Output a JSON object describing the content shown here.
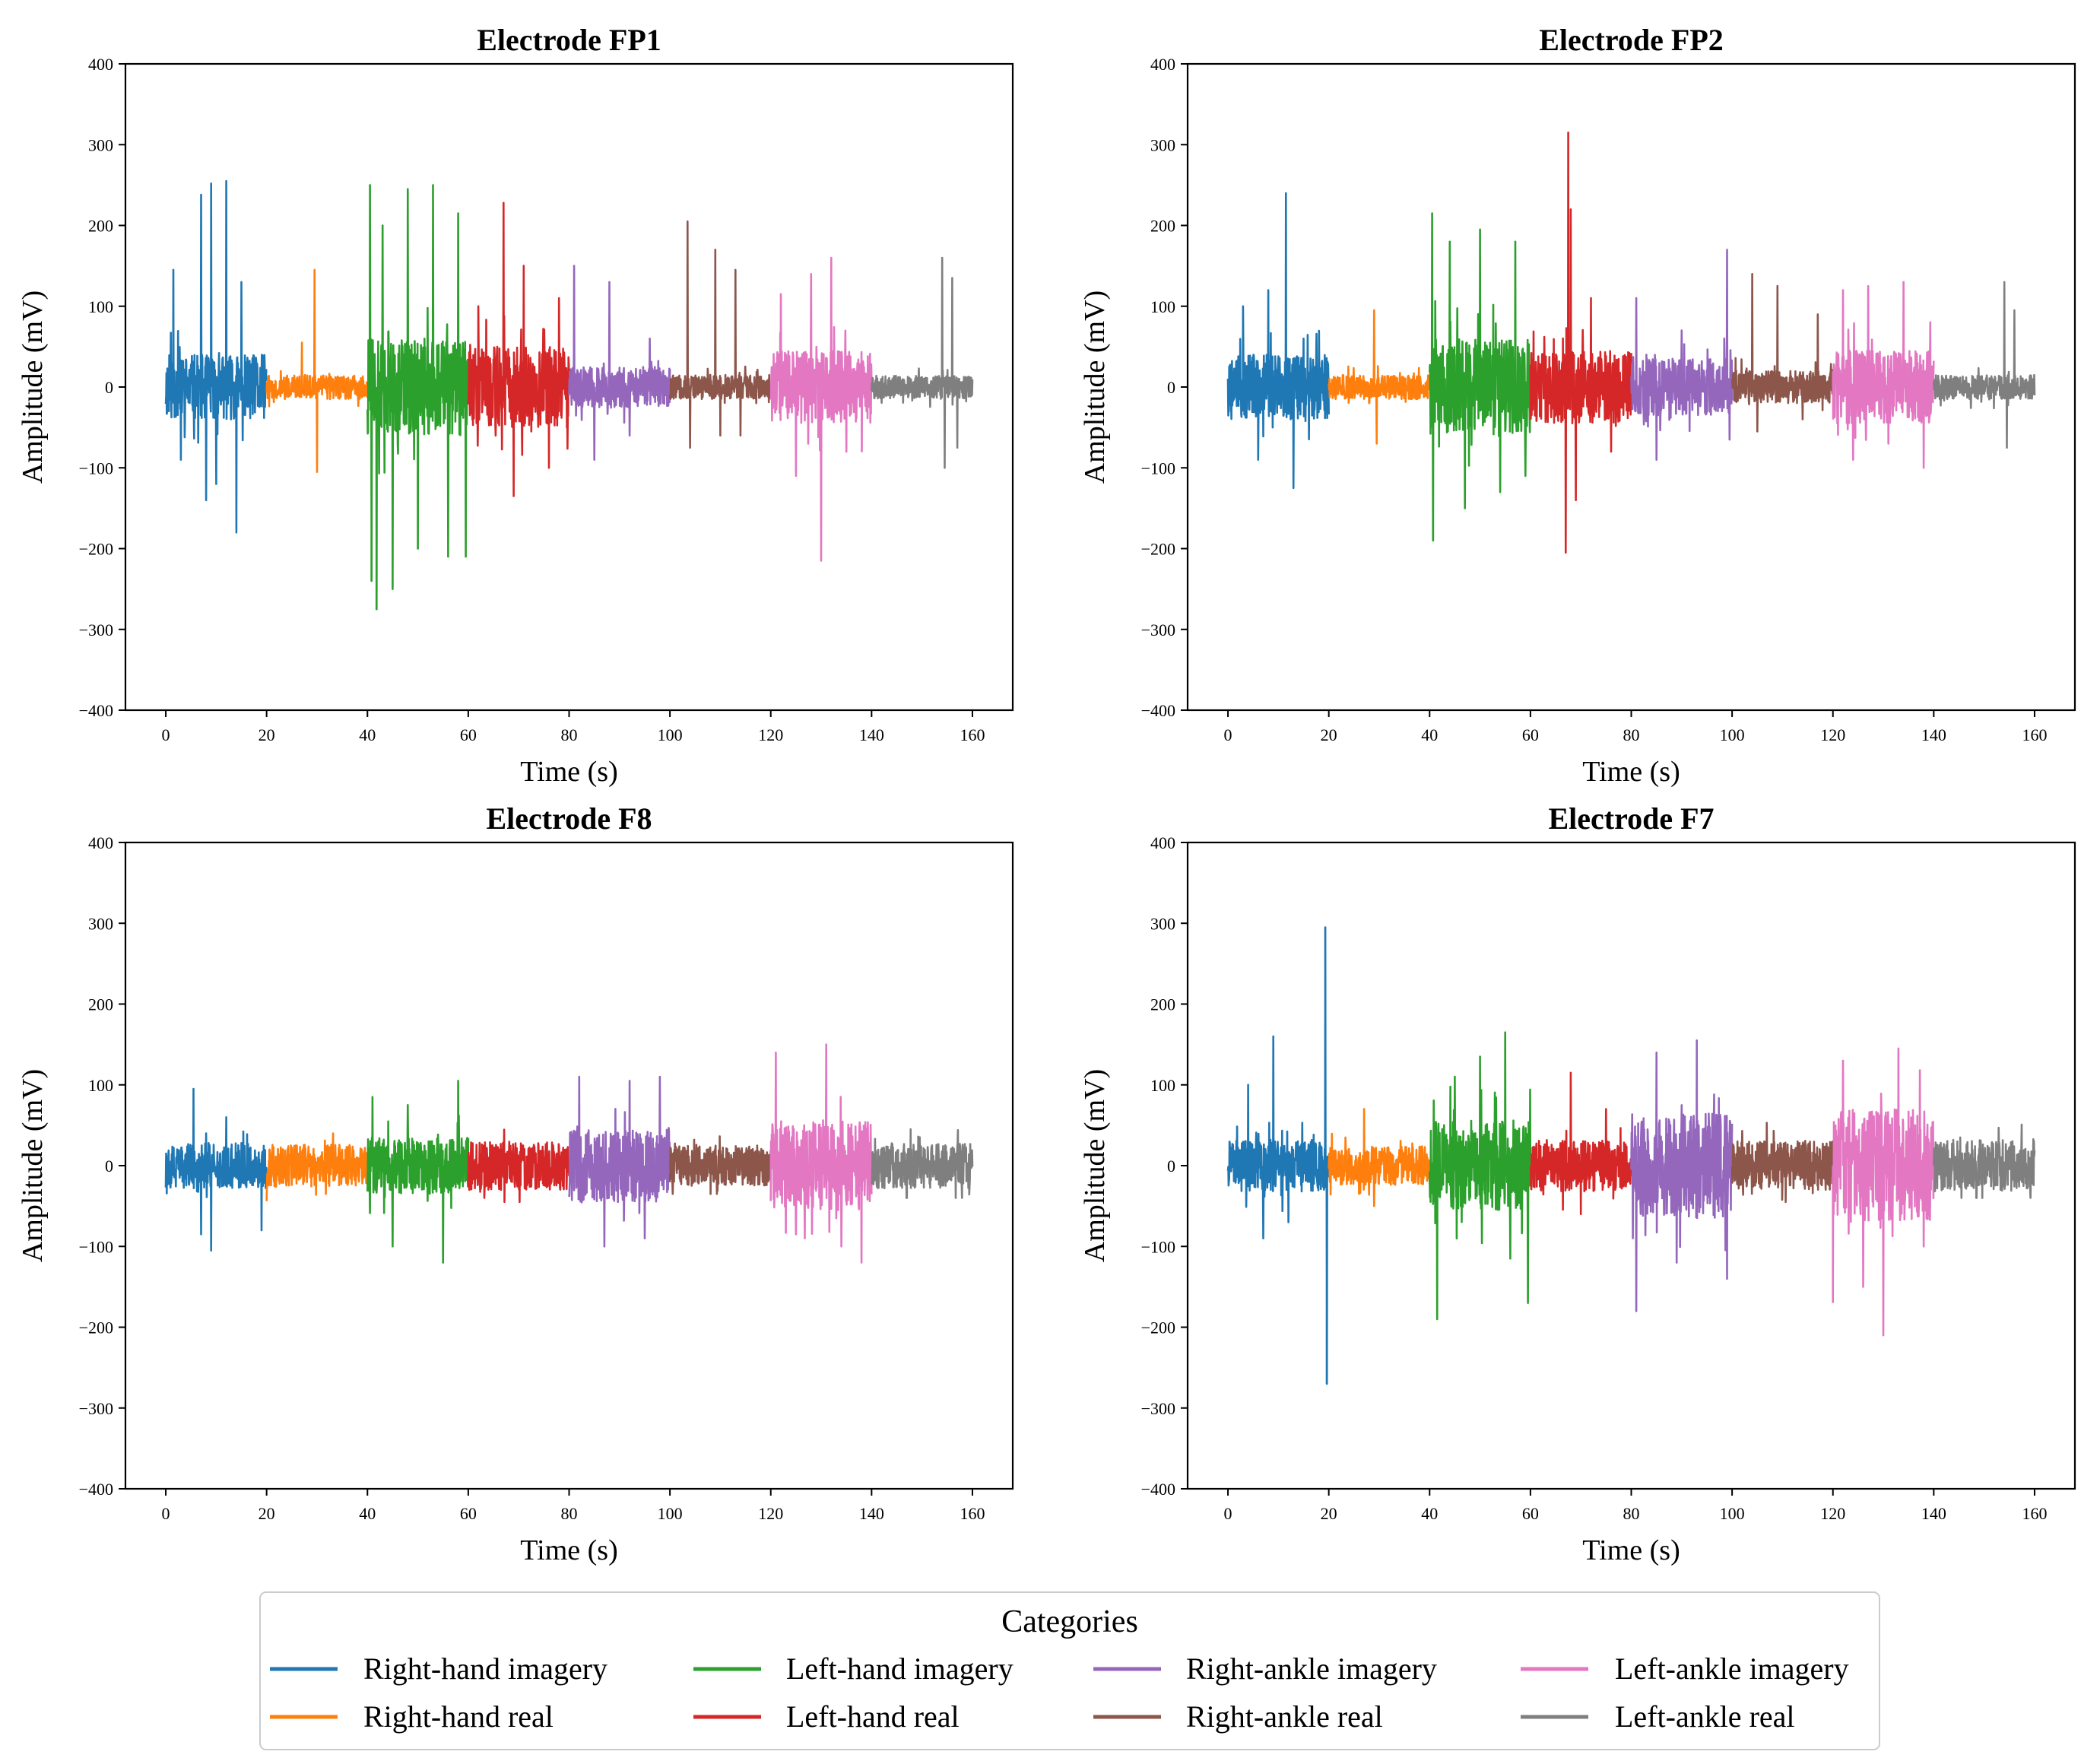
{
  "chart_data": [
    {
      "type": "line",
      "title": "Electrode FP1",
      "xlabel": "Time (s)",
      "ylabel": "Amplitude (mV)",
      "xlim": [
        -8,
        168
      ],
      "ylim": [
        -400,
        400
      ],
      "xticks": [
        0,
        20,
        40,
        60,
        80,
        100,
        120,
        140,
        160
      ],
      "yticks": [
        -400,
        -300,
        -200,
        -100,
        0,
        100,
        200,
        300,
        400
      ],
      "series": [
        {
          "name": "Right-hand imagery",
          "x_range": [
            0,
            20
          ],
          "approx_max": 255,
          "approx_min": -180,
          "noise": 40,
          "spikes": [
            [
              1.5,
              145
            ],
            [
              3,
              -90
            ],
            [
              7,
              238
            ],
            [
              8,
              -140
            ],
            [
              9,
              252
            ],
            [
              10,
              -120
            ],
            [
              12,
              255
            ],
            [
              14,
              -180
            ],
            [
              15,
              130
            ]
          ]
        },
        {
          "name": "Right-hand real",
          "x_range": [
            20,
            40
          ],
          "approx_max": 145,
          "approx_min": -105,
          "noise": 15,
          "spikes": [
            [
              27,
              55
            ],
            [
              29.5,
              145
            ],
            [
              30,
              -105
            ]
          ]
        },
        {
          "name": "Left-hand imagery",
          "x_range": [
            40,
            60
          ],
          "approx_max": 250,
          "approx_min": -275,
          "noise": 60,
          "spikes": [
            [
              40.5,
              250
            ],
            [
              40.8,
              -240
            ],
            [
              41.8,
              -275
            ],
            [
              43,
              200
            ],
            [
              45,
              -250
            ],
            [
              48,
              245
            ],
            [
              50,
              -200
            ],
            [
              53,
              250
            ],
            [
              56,
              -210
            ],
            [
              58,
              215
            ],
            [
              59.5,
              -210
            ]
          ]
        },
        {
          "name": "Left-hand real",
          "x_range": [
            60,
            80
          ],
          "approx_max": 228,
          "approx_min": -135,
          "noise": 50,
          "spikes": [
            [
              62,
              100
            ],
            [
              67,
              228
            ],
            [
              69,
              -135
            ],
            [
              71,
              150
            ],
            [
              76,
              -100
            ],
            [
              78,
              110
            ]
          ]
        },
        {
          "name": "Right-ankle imagery",
          "x_range": [
            80,
            100
          ],
          "approx_max": 150,
          "approx_min": -90,
          "noise": 25,
          "spikes": [
            [
              81,
              150
            ],
            [
              85,
              -90
            ],
            [
              88,
              130
            ],
            [
              92,
              -60
            ],
            [
              96,
              60
            ]
          ]
        },
        {
          "name": "Right-ankle real",
          "x_range": [
            100,
            120
          ],
          "approx_max": 205,
          "approx_min": -75,
          "noise": 15,
          "spikes": [
            [
              103.5,
              205
            ],
            [
              104,
              -75
            ],
            [
              109,
              170
            ],
            [
              110,
              -60
            ],
            [
              113,
              145
            ],
            [
              114,
              -60
            ]
          ]
        },
        {
          "name": "Left-ankle imagery",
          "x_range": [
            120,
            140
          ],
          "approx_max": 165,
          "approx_min": -215,
          "noise": 45,
          "spikes": [
            [
              122,
              115
            ],
            [
              125,
              -110
            ],
            [
              128,
              140
            ],
            [
              130,
              -215
            ],
            [
              132,
              160
            ],
            [
              135,
              -80
            ]
          ]
        },
        {
          "name": "Left-ankle real",
          "x_range": [
            140,
            160
          ],
          "approx_max": 160,
          "approx_min": -100,
          "noise": 14,
          "spikes": [
            [
              154,
              160
            ],
            [
              154.5,
              -100
            ],
            [
              156,
              135
            ],
            [
              157,
              -75
            ]
          ]
        }
      ]
    },
    {
      "type": "line",
      "title": "Electrode FP2",
      "xlabel": "Time (s)",
      "ylabel": "Amplitude (mV)",
      "xlim": [
        -8,
        168
      ],
      "ylim": [
        -400,
        400
      ],
      "xticks": [
        0,
        20,
        40,
        60,
        80,
        100,
        120,
        140,
        160
      ],
      "yticks": [
        -400,
        -300,
        -200,
        -100,
        0,
        100,
        200,
        300,
        400
      ],
      "series": [
        {
          "name": "Right-hand imagery",
          "x_range": [
            0,
            20
          ],
          "approx_max": 240,
          "approx_min": -125,
          "noise": 40,
          "spikes": [
            [
              3,
              100
            ],
            [
              6,
              -90
            ],
            [
              8,
              120
            ],
            [
              11.5,
              240
            ],
            [
              13,
              -125
            ],
            [
              15,
              60
            ]
          ]
        },
        {
          "name": "Right-hand real",
          "x_range": [
            20,
            40
          ],
          "approx_max": 95,
          "approx_min": -70,
          "noise": 15,
          "spikes": [
            [
              29,
              95
            ],
            [
              29.5,
              -70
            ]
          ]
        },
        {
          "name": "Left-hand imagery",
          "x_range": [
            40,
            60
          ],
          "approx_max": 215,
          "approx_min": -190,
          "noise": 60,
          "spikes": [
            [
              40.5,
              215
            ],
            [
              40.7,
              -190
            ],
            [
              44,
              180
            ],
            [
              47,
              -150
            ],
            [
              50,
              195
            ],
            [
              54,
              -130
            ],
            [
              57,
              180
            ],
            [
              59,
              -110
            ]
          ]
        },
        {
          "name": "Left-hand real",
          "x_range": [
            60,
            80
          ],
          "approx_max": 315,
          "approx_min": -205,
          "noise": 45,
          "spikes": [
            [
              67,
              -205
            ],
            [
              67.5,
              315
            ],
            [
              68,
              220
            ],
            [
              69,
              -140
            ],
            [
              72,
              110
            ],
            [
              76,
              -80
            ]
          ]
        },
        {
          "name": "Right-ankle imagery",
          "x_range": [
            80,
            100
          ],
          "approx_max": 170,
          "approx_min": -95,
          "noise": 35,
          "spikes": [
            [
              81,
              110
            ],
            [
              85,
              -90
            ],
            [
              90,
              70
            ],
            [
              99,
              170
            ],
            [
              99.5,
              -65
            ]
          ]
        },
        {
          "name": "Right-ankle real",
          "x_range": [
            100,
            120
          ],
          "approx_max": 140,
          "approx_min": -55,
          "noise": 20,
          "spikes": [
            [
              104,
              140
            ],
            [
              105,
              -55
            ],
            [
              109,
              125
            ],
            [
              114,
              -40
            ],
            [
              117,
              90
            ]
          ]
        },
        {
          "name": "Left-ankle imagery",
          "x_range": [
            120,
            140
          ],
          "approx_max": 135,
          "approx_min": -100,
          "noise": 45,
          "spikes": [
            [
              122,
              120
            ],
            [
              124,
              -90
            ],
            [
              127,
              125
            ],
            [
              131,
              -70
            ],
            [
              134,
              130
            ],
            [
              138,
              -100
            ]
          ]
        },
        {
          "name": "Left-ankle real",
          "x_range": [
            140,
            160
          ],
          "approx_max": 130,
          "approx_min": -75,
          "noise": 15,
          "spikes": [
            [
              154,
              130
            ],
            [
              154.5,
              -75
            ],
            [
              156,
              95
            ]
          ]
        }
      ]
    },
    {
      "type": "line",
      "title": "Electrode F8",
      "xlabel": "Time (s)",
      "ylabel": "Amplitude (mV)",
      "xlim": [
        -8,
        168
      ],
      "ylim": [
        -400,
        400
      ],
      "xticks": [
        0,
        20,
        40,
        60,
        80,
        100,
        120,
        140,
        160
      ],
      "yticks": [
        -400,
        -300,
        -200,
        -100,
        0,
        100,
        200,
        300,
        400
      ],
      "series": [
        {
          "name": "Right-hand imagery",
          "x_range": [
            0,
            20
          ],
          "approx_max": 95,
          "approx_min": -105,
          "noise": 28,
          "spikes": [
            [
              5.5,
              95
            ],
            [
              7,
              -85
            ],
            [
              9,
              -105
            ],
            [
              12,
              60
            ],
            [
              19,
              -80
            ]
          ]
        },
        {
          "name": "Right-hand real",
          "x_range": [
            20,
            40
          ],
          "approx_max": 40,
          "approx_min": -45,
          "noise": 26,
          "spikes": []
        },
        {
          "name": "Left-hand imagery",
          "x_range": [
            40,
            60
          ],
          "approx_max": 105,
          "approx_min": -120,
          "noise": 35,
          "spikes": [
            [
              41,
              85
            ],
            [
              45,
              -100
            ],
            [
              48,
              75
            ],
            [
              55,
              -120
            ],
            [
              58,
              105
            ]
          ]
        },
        {
          "name": "Left-hand real",
          "x_range": [
            60,
            80
          ],
          "approx_max": 50,
          "approx_min": -45,
          "noise": 30,
          "spikes": []
        },
        {
          "name": "Right-ankle imagery",
          "x_range": [
            80,
            100
          ],
          "approx_max": 110,
          "approx_min": -105,
          "noise": 45,
          "spikes": [
            [
              82,
              110
            ],
            [
              87,
              -100
            ],
            [
              92,
              105
            ],
            [
              95,
              -90
            ],
            [
              98,
              110
            ]
          ]
        },
        {
          "name": "Right-ankle real",
          "x_range": [
            100,
            120
          ],
          "approx_max": 40,
          "approx_min": -35,
          "noise": 25,
          "spikes": []
        },
        {
          "name": "Left-ankle imagery",
          "x_range": [
            120,
            140
          ],
          "approx_max": 150,
          "approx_min": -120,
          "noise": 55,
          "spikes": [
            [
              121,
              140
            ],
            [
              125,
              -85
            ],
            [
              131,
              150
            ],
            [
              134,
              -100
            ],
            [
              138,
              -120
            ]
          ]
        },
        {
          "name": "Left-ankle real",
          "x_range": [
            140,
            160
          ],
          "approx_max": 45,
          "approx_min": -40,
          "noise": 28,
          "spikes": []
        }
      ]
    },
    {
      "type": "line",
      "title": "Electrode F7",
      "xlabel": "Time (s)",
      "ylabel": "Amplitude (mV)",
      "xlim": [
        -8,
        168
      ],
      "ylim": [
        -400,
        400
      ],
      "xticks": [
        0,
        20,
        40,
        60,
        80,
        100,
        120,
        140,
        160
      ],
      "yticks": [
        -400,
        -300,
        -200,
        -100,
        0,
        100,
        200,
        300,
        400
      ],
      "series": [
        {
          "name": "Right-hand imagery",
          "x_range": [
            0,
            20
          ],
          "approx_max": 295,
          "approx_min": -270,
          "noise": 32,
          "spikes": [
            [
              4,
              100
            ],
            [
              7,
              -90
            ],
            [
              9,
              160
            ],
            [
              12,
              -70
            ],
            [
              19.3,
              295
            ],
            [
              19.6,
              -270
            ]
          ]
        },
        {
          "name": "Right-hand real",
          "x_range": [
            20,
            40
          ],
          "approx_max": 70,
          "approx_min": -55,
          "noise": 24,
          "spikes": [
            [
              27,
              70
            ],
            [
              29,
              -50
            ]
          ]
        },
        {
          "name": "Left-hand imagery",
          "x_range": [
            40,
            60
          ],
          "approx_max": 165,
          "approx_min": -190,
          "noise": 55,
          "spikes": [
            [
              41.5,
              -190
            ],
            [
              45,
              110
            ],
            [
              50,
              135
            ],
            [
              55,
              165
            ],
            [
              56,
              -115
            ],
            [
              59.5,
              -170
            ]
          ]
        },
        {
          "name": "Left-hand real",
          "x_range": [
            60,
            80
          ],
          "approx_max": 115,
          "approx_min": -60,
          "noise": 32,
          "spikes": [
            [
              68,
              115
            ],
            [
              70,
              -60
            ],
            [
              75,
              70
            ]
          ]
        },
        {
          "name": "Right-ankle imagery",
          "x_range": [
            80,
            100
          ],
          "approx_max": 155,
          "approx_min": -180,
          "noise": 65,
          "spikes": [
            [
              81,
              -180
            ],
            [
              85,
              140
            ],
            [
              89,
              -120
            ],
            [
              93,
              155
            ],
            [
              99,
              -140
            ]
          ]
        },
        {
          "name": "Right-ankle real",
          "x_range": [
            100,
            120
          ],
          "approx_max": 70,
          "approx_min": -45,
          "noise": 30,
          "spikes": []
        },
        {
          "name": "Left-ankle imagery",
          "x_range": [
            120,
            140
          ],
          "approx_max": 145,
          "approx_min": -210,
          "noise": 70,
          "spikes": [
            [
              120,
              -170
            ],
            [
              122,
              130
            ],
            [
              126,
              -150
            ],
            [
              130,
              -210
            ],
            [
              133,
              145
            ],
            [
              138,
              -100
            ]
          ]
        },
        {
          "name": "Left-ankle real",
          "x_range": [
            140,
            160
          ],
          "approx_max": 60,
          "approx_min": -40,
          "noise": 32,
          "spikes": []
        }
      ]
    }
  ],
  "legend": {
    "title": "Categories",
    "entries": [
      {
        "label": "Right-hand imagery",
        "color": "#1f77b4"
      },
      {
        "label": "Right-hand real",
        "color": "#ff7f0e"
      },
      {
        "label": "Left-hand imagery",
        "color": "#2ca02c"
      },
      {
        "label": "Left-hand real",
        "color": "#d62728"
      },
      {
        "label": "Right-ankle imagery",
        "color": "#9467bd"
      },
      {
        "label": "Right-ankle real",
        "color": "#8c564b"
      },
      {
        "label": "Left-ankle imagery",
        "color": "#e377c2"
      },
      {
        "label": "Left-ankle real",
        "color": "#7f7f7f"
      }
    ]
  }
}
